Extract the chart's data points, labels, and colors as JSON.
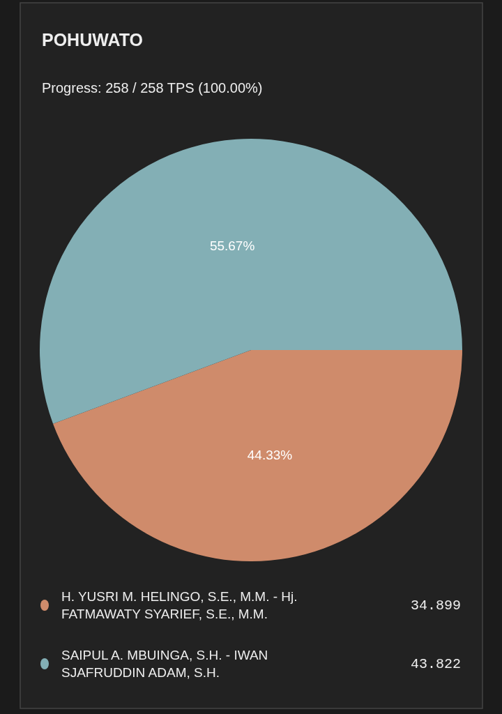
{
  "chart_data": {
    "type": "pie",
    "title": "POHUWATO",
    "subtitle": "Progress: 258 / 258 TPS (100.00%)",
    "categories": [
      "H. YUSRI M. HELINGO, S.E., M.M. - Hj. FATMAWATY SYARIEF, S.E., M.M.",
      "SAIPUL A. MBUINGA, S.H. - IWAN SJAFRUDDIN ADAM, S.H."
    ],
    "values": [
      44.33,
      55.67
    ],
    "annotations": [
      "34.899",
      "43.822"
    ],
    "value_labels": [
      "44.33%",
      "55.67%"
    ],
    "colors": [
      "#cf8b6b",
      "#83afb5"
    ],
    "legend": "bottom"
  }
}
